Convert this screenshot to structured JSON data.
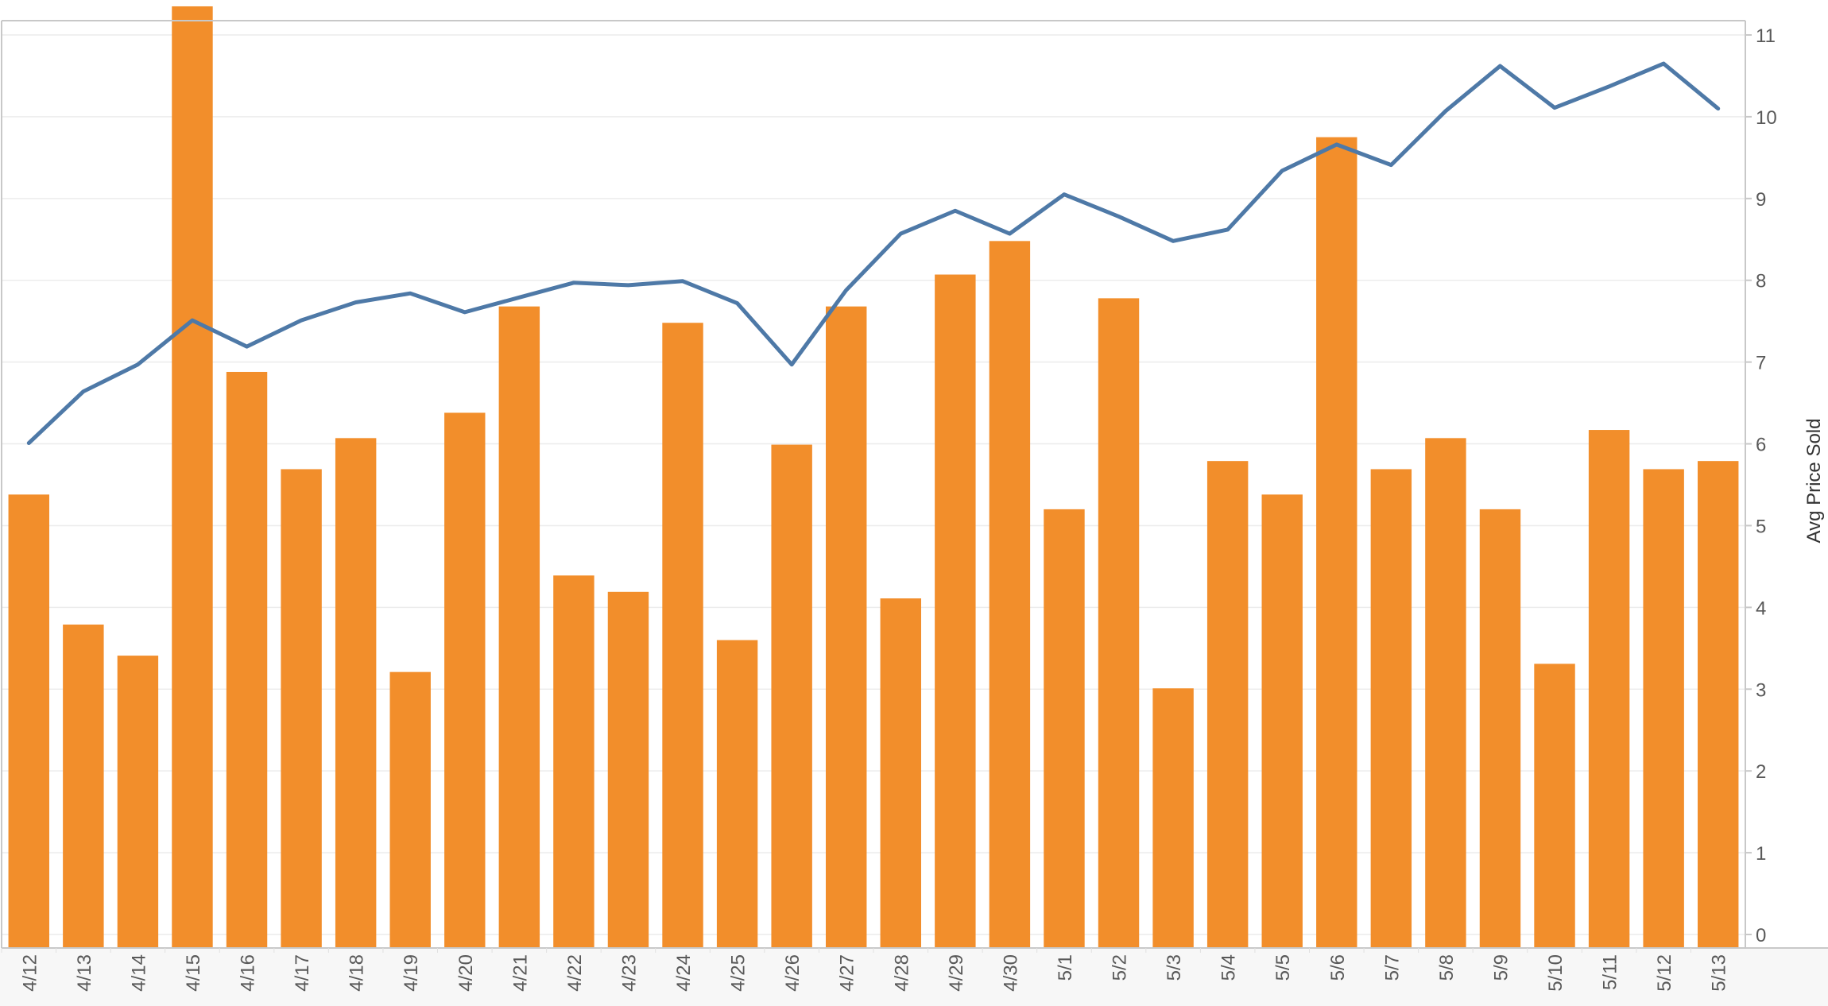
{
  "chart_data": {
    "type": "bar",
    "categories": [
      "4/12",
      "4/13",
      "4/14",
      "4/15",
      "4/16",
      "4/17",
      "4/18",
      "4/19",
      "4/20",
      "4/21",
      "4/22",
      "4/23",
      "4/24",
      "4/25",
      "4/26",
      "4/27",
      "4/28",
      "4/29",
      "4/30",
      "5/1",
      "5/2",
      "5/3",
      "5/4",
      "5/5",
      "5/6",
      "5/7",
      "5/8",
      "5/9",
      "5/10",
      "5/11",
      "5/12",
      "5/13"
    ],
    "series": [
      {
        "type": "bar",
        "color": "#f28e2b",
        "values": [
          5.38,
          3.79,
          3.41,
          11.35,
          6.88,
          5.69,
          6.07,
          3.21,
          6.38,
          7.68,
          4.39,
          4.19,
          7.48,
          3.6,
          5.99,
          7.68,
          4.11,
          8.07,
          8.48,
          5.2,
          7.78,
          3.01,
          5.79,
          5.38,
          9.75,
          5.69,
          6.07,
          5.2,
          3.31,
          6.17,
          5.69,
          5.79
        ]
      },
      {
        "type": "line",
        "color": "#4e79a7",
        "values": [
          6.01,
          6.64,
          6.97,
          7.51,
          7.19,
          7.51,
          7.73,
          7.84,
          7.61,
          7.79,
          7.97,
          7.94,
          7.99,
          7.72,
          6.97,
          7.88,
          8.57,
          8.85,
          8.57,
          9.05,
          8.78,
          8.48,
          8.62,
          9.34,
          9.66,
          9.41,
          10.07,
          10.62,
          10.11,
          10.37,
          10.65,
          10.1
        ]
      }
    ],
    "yaxis_right": {
      "title": "Avg Price Sold",
      "min": 0,
      "max": 11,
      "ticks": [
        "0",
        "1",
        "2",
        "3",
        "4",
        "5",
        "6",
        "7",
        "8",
        "9",
        "10",
        "11"
      ]
    },
    "grid": true,
    "legend": "none"
  }
}
